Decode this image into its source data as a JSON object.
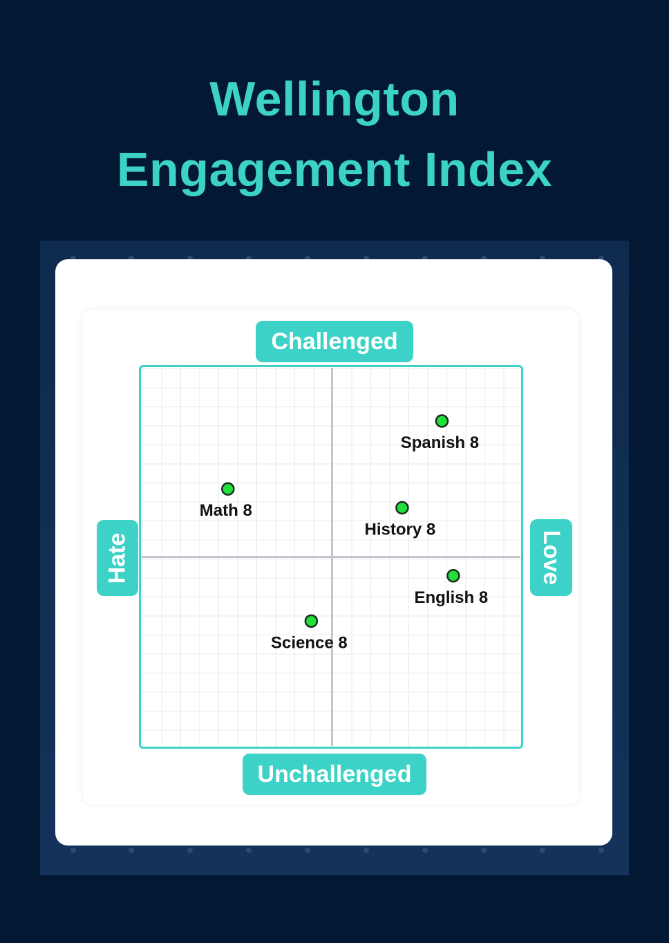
{
  "header": {
    "title_line1": "Wellington",
    "title_line2": "Engagement Index"
  },
  "colors": {
    "accent": "#3dd2c7",
    "background": "#031833",
    "point_fill": "#22e03a",
    "axis_line": "#c3c5cc"
  },
  "chart_data": {
    "type": "scatter",
    "quadrant_labels": {
      "top": "Challenged",
      "bottom": "Unchallenged",
      "left": "Hate",
      "right": "Love"
    },
    "xlim": [
      -10,
      10
    ],
    "ylim": [
      -10,
      10
    ],
    "grid": true,
    "points": [
      {
        "label": "Spanish 8",
        "x": 5.8,
        "y": 7.2
      },
      {
        "label": "Math 8",
        "x": -5.5,
        "y": 3.6
      },
      {
        "label": "History 8",
        "x": 3.7,
        "y": 2.6
      },
      {
        "label": "English 8",
        "x": 6.4,
        "y": -1.0
      },
      {
        "label": "Science 8",
        "x": -1.1,
        "y": -3.4
      }
    ]
  }
}
